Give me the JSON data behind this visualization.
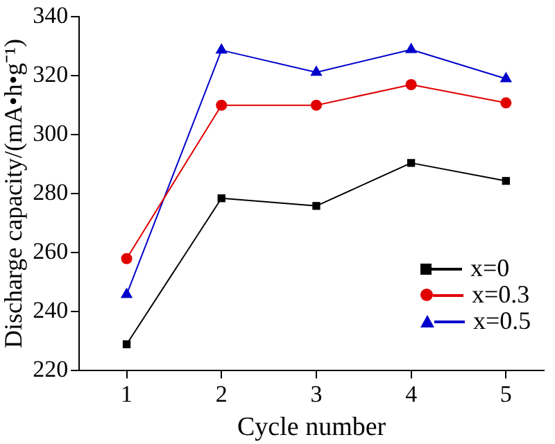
{
  "chart_data": {
    "type": "line",
    "xlabel": "Cycle number",
    "ylabel": "Discharge capacity/(mA•h•g⁻¹)",
    "x": [
      1,
      2,
      3,
      4,
      5
    ],
    "series": [
      {
        "name": "x=0",
        "color": "#000000",
        "marker": "square",
        "values": [
          228.8,
          278.4,
          275.8,
          290.4,
          284.3
        ]
      },
      {
        "name": "x=0.3",
        "color": "#e00000",
        "marker": "circle",
        "values": [
          257.9,
          310,
          310,
          317,
          310.8
        ]
      },
      {
        "name": "x=0.5",
        "color": "#0000cc",
        "marker": "triangle",
        "values": [
          245.7,
          328.7,
          321.2,
          328.9,
          319
        ]
      }
    ],
    "xlim": [
      0.5,
      5.4
    ],
    "xticks": [
      1,
      2,
      3,
      4,
      5
    ],
    "ylim": [
      220,
      340
    ],
    "yticks": [
      220,
      240,
      260,
      280,
      300,
      320,
      340
    ],
    "grid": false,
    "legend": "bottom right",
    "line_style": "solid"
  }
}
